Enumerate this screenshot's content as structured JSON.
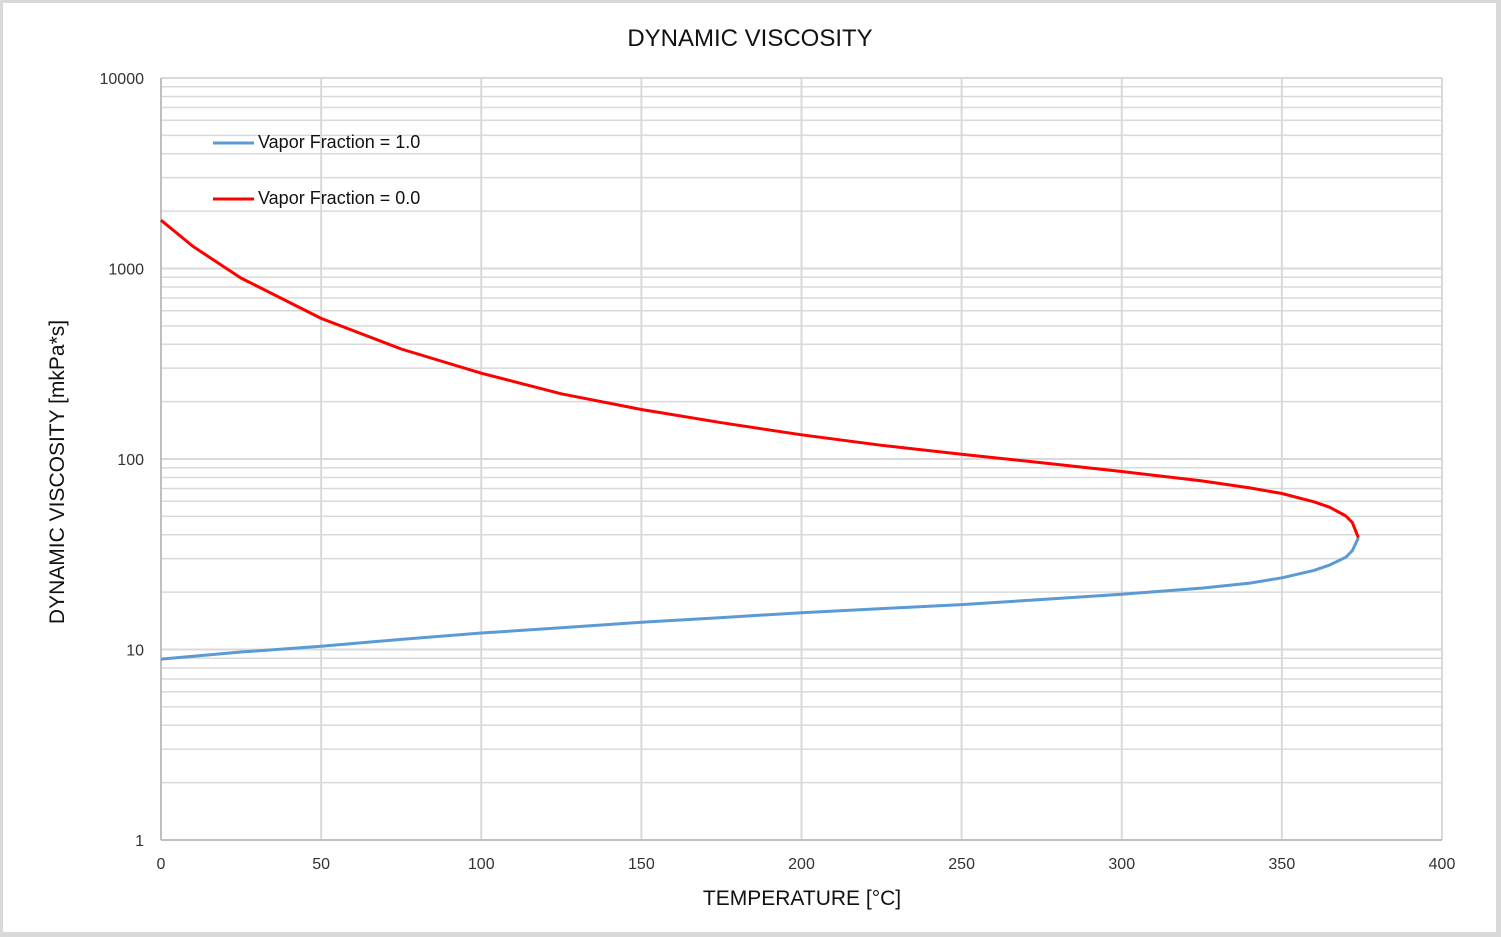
{
  "chart_data": {
    "type": "line",
    "title": "DYNAMIC VISCOSITY",
    "xlabel": "TEMPERATURE [°C]",
    "ylabel": "DYNAMIC VISCOSITY [mkPa*s]",
    "xlim": [
      0,
      400
    ],
    "ylim": [
      1,
      10000
    ],
    "yscale": "log",
    "grid": true,
    "legend_position": "top-left",
    "x_ticks": [
      "0",
      "50",
      "100",
      "150",
      "200",
      "250",
      "300",
      "350",
      "400"
    ],
    "y_ticks": [
      "1",
      "10",
      "100",
      "1000",
      "10000"
    ],
    "series": [
      {
        "name": "Vapor Fraction = 1.0",
        "color": "#5b9bd5",
        "x": [
          0,
          25,
          50,
          75,
          100,
          125,
          150,
          175,
          200,
          225,
          250,
          275,
          300,
          325,
          340,
          350,
          360,
          365,
          370,
          372,
          373.9
        ],
        "y": [
          8.9,
          9.7,
          10.4,
          11.3,
          12.2,
          13.0,
          13.9,
          14.7,
          15.6,
          16.4,
          17.2,
          18.3,
          19.5,
          21.0,
          22.3,
          23.8,
          26.0,
          27.8,
          30.5,
          33.0,
          38.6
        ]
      },
      {
        "name": "Vapor Fraction = 0.0",
        "color": "#ff0000",
        "x": [
          0,
          10,
          25,
          50,
          75,
          100,
          125,
          150,
          175,
          200,
          225,
          250,
          275,
          300,
          325,
          340,
          350,
          360,
          365,
          370,
          372,
          373.9
        ],
        "y": [
          1792,
          1306,
          890,
          547,
          378,
          282,
          220,
          182,
          155,
          134,
          118,
          106,
          95.6,
          86,
          76.7,
          70.5,
          65.9,
          59.6,
          55.8,
          50.2,
          46.5,
          38.6
        ]
      }
    ]
  }
}
